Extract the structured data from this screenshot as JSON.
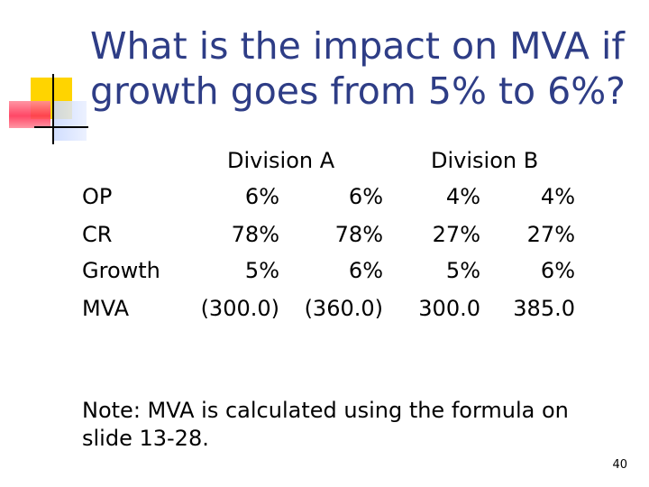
{
  "title": "What is the impact on MVA if growth goes from 5% to 6%?",
  "table": {
    "division_a": "Division A",
    "division_b": "Division B",
    "rows": [
      {
        "label": "OP",
        "a1": "6%",
        "a2": "6%",
        "b1": "4%",
        "b2": "4%"
      },
      {
        "label": "CR",
        "a1": "78%",
        "a2": "78%",
        "b1": "27%",
        "b2": "27%"
      },
      {
        "label": "Growth",
        "a1": "5%",
        "a2": "6%",
        "b1": "5%",
        "b2": "6%"
      },
      {
        "label": "MVA",
        "a1": "(300.0)",
        "a2": "(360.0)",
        "b1": "300.0",
        "b2": "385.0"
      }
    ]
  },
  "note": "Note: MVA is calculated using the formula on slide 13-28.",
  "page_number": "40",
  "colors": {
    "title": "#2e3d86",
    "accent_yellow": "#ffd400",
    "accent_red": "#ff3355",
    "accent_blue": "#c9d8ff"
  }
}
